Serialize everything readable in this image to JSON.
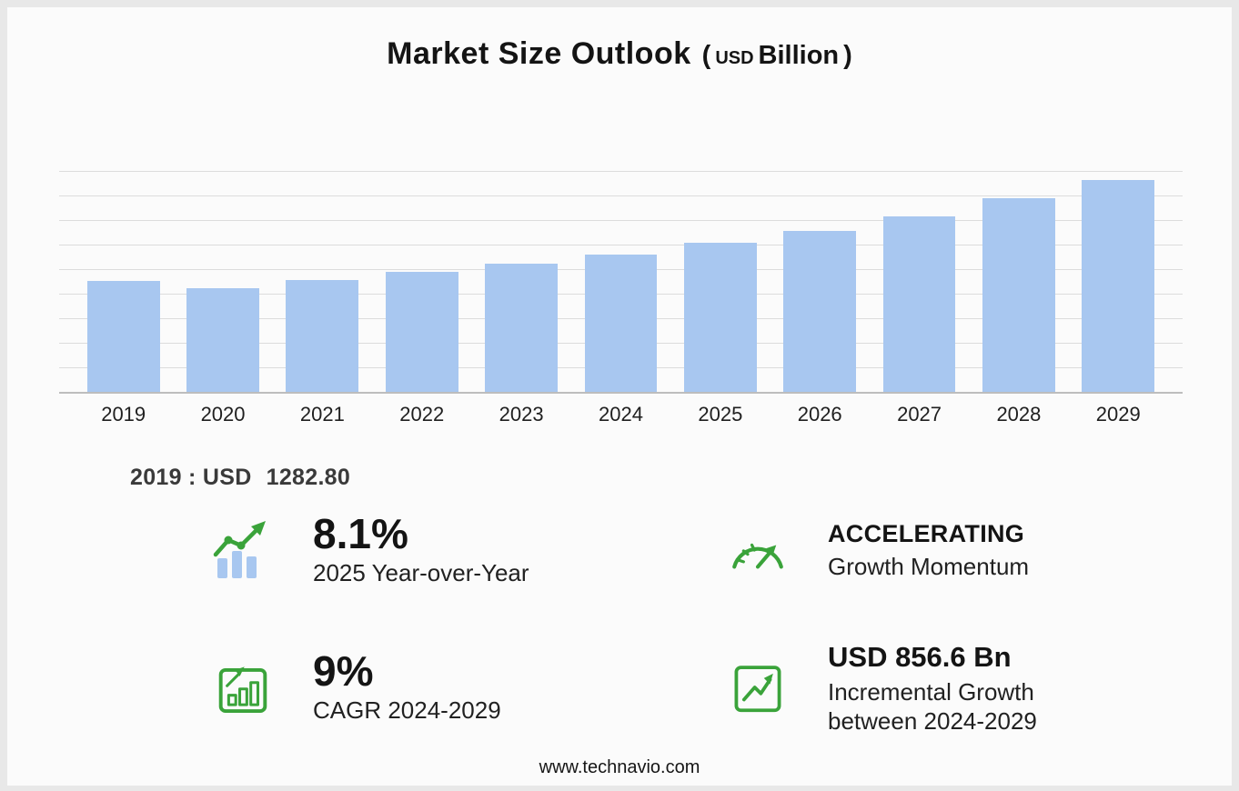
{
  "title": {
    "main": "Market Size Outlook",
    "open_paren": "(",
    "unit_small": "USD",
    "unit_big": "Billion",
    "close_paren": ")"
  },
  "chart_data": {
    "type": "bar",
    "title": "Market Size Outlook (USD Billion)",
    "categories": [
      "2019",
      "2020",
      "2021",
      "2022",
      "2023",
      "2024",
      "2025",
      "2026",
      "2027",
      "2028",
      "2029"
    ],
    "values": [
      1282.8,
      1192,
      1290,
      1388,
      1482,
      1589.7,
      1718.5,
      1857,
      2029,
      2236,
      2446.3
    ],
    "xlabel": "",
    "ylabel": "USD Billion",
    "ylim": [
      0,
      2550
    ],
    "grid": true,
    "gridline_count": 9,
    "legend": "none"
  },
  "annotation": {
    "prefix": "2019 : USD",
    "value": "1282.80"
  },
  "stats": [
    {
      "icon": "yoy-trend-icon",
      "value": "8.1%",
      "label": "2025 Year-over-Year"
    },
    {
      "icon": "speedometer-icon",
      "value": "ACCELERATING",
      "label": "Growth Momentum"
    },
    {
      "icon": "cagr-chart-icon",
      "value": "9%",
      "label": "CAGR 2024-2029"
    },
    {
      "icon": "incremental-growth-icon",
      "value": "USD 856.6 Bn",
      "label": "Incremental Growth between 2024-2029"
    }
  ],
  "footer": {
    "url": "www.technavio.com"
  },
  "colors": {
    "bar": "#a8c7f0",
    "green": "#3aa33a",
    "grid": "#dcdcdc",
    "baseline": "#bdbdbd"
  }
}
